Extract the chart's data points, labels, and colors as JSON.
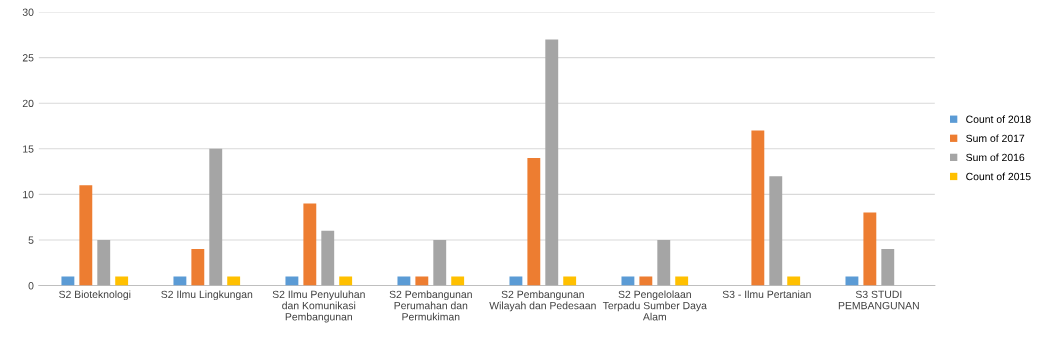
{
  "chart_data": {
    "type": "bar",
    "categories": [
      "S2 Bioteknologi",
      "S2 Ilmu Lingkungan",
      "S2 Ilmu Penyuluhan\ndan Komunikasi\nPembangunan",
      "S2 Pembangunan\nPerumahan dan\nPermukiman",
      "S2 Pembangunan\nWilayah dan Pedesaan",
      "S2 Pengelolaan\nTerpadu Sumber Daya\nAlam",
      "S3 - Ilmu Pertanian",
      "S3 STUDI\nPEMBANGUNAN"
    ],
    "series": [
      {
        "name": "Count of 2018",
        "color": "#5b9bd5",
        "values": [
          1,
          1,
          1,
          1,
          1,
          1,
          null,
          1
        ]
      },
      {
        "name": "Sum of 2017",
        "color": "#ed7d31",
        "values": [
          11,
          4,
          9,
          1,
          14,
          1,
          17,
          8
        ]
      },
      {
        "name": "Sum of 2016",
        "color": "#a5a5a5",
        "values": [
          5,
          15,
          6,
          5,
          27,
          5,
          12,
          4
        ]
      },
      {
        "name": "Count of 2015",
        "color": "#ffc000",
        "values": [
          1,
          1,
          1,
          1,
          1,
          1,
          1,
          null
        ]
      }
    ],
    "ylim": [
      0,
      30
    ],
    "yticks": [
      0,
      5,
      10,
      15,
      20,
      25,
      30
    ],
    "grid": "y",
    "legend": "right"
  }
}
